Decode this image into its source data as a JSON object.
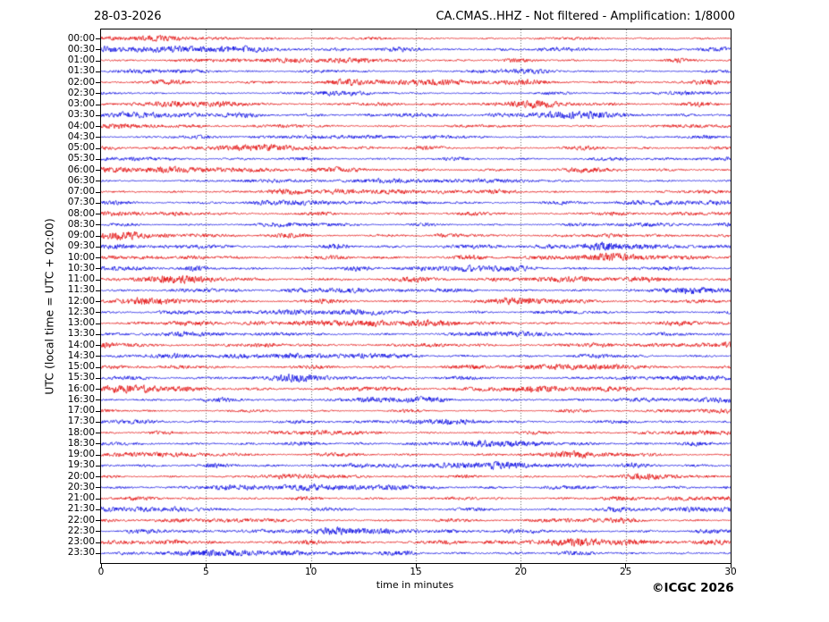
{
  "header": {
    "date": "28-03-2026",
    "title": "CA.CMAS..HHZ - Not filtered - Amplification: 1/8000"
  },
  "y_axis": {
    "label": "UTC (local time = UTC + 02:00)"
  },
  "x_axis": {
    "label": "time in minutes",
    "ticks": [
      "0",
      "5",
      "10",
      "15",
      "20",
      "25",
      "30"
    ],
    "min": 0,
    "max": 30
  },
  "footer": {
    "copyright": "©ICGC 2026"
  },
  "chart_data": {
    "type": "line",
    "subtype": "helicorder-dayplot",
    "title": "CA.CMAS..HHZ - Not filtered - Amplification: 1/8000",
    "date": "28-03-2026",
    "xlabel": "time in minutes",
    "ylabel": "UTC (local time = UTC + 02:00)",
    "x_range_minutes": [
      0,
      30
    ],
    "grid_interval_minutes": 5,
    "grid_style": "dotted-vertical",
    "rows": 48,
    "minutes_per_row": 30,
    "row_labels": [
      "00:00",
      "00:30",
      "01:00",
      "01:30",
      "02:00",
      "02:30",
      "03:00",
      "03:30",
      "04:00",
      "04:30",
      "05:00",
      "05:30",
      "06:00",
      "06:30",
      "07:00",
      "07:30",
      "08:00",
      "08:30",
      "09:00",
      "09:30",
      "10:00",
      "10:30",
      "11:00",
      "11:30",
      "12:00",
      "12:30",
      "13:00",
      "13:30",
      "14:00",
      "14:30",
      "15:00",
      "15:30",
      "16:00",
      "16:30",
      "17:00",
      "17:30",
      "18:00",
      "18:30",
      "19:00",
      "19:30",
      "20:00",
      "20:30",
      "21:00",
      "21:30",
      "22:00",
      "22:30",
      "23:00",
      "23:30"
    ],
    "trace_colors": {
      "even_rows": "#e10000",
      "odd_rows": "#0000e1"
    },
    "grid_color": "#666666",
    "content_description": "Continuous background seismic noise on all 48 half-hour traces; low-amplitude microseismic wiggles (roughly ±1-2 px) with intermittent small noise bursts (up to ±4 px); no distinct large earthquake signatures visible."
  }
}
